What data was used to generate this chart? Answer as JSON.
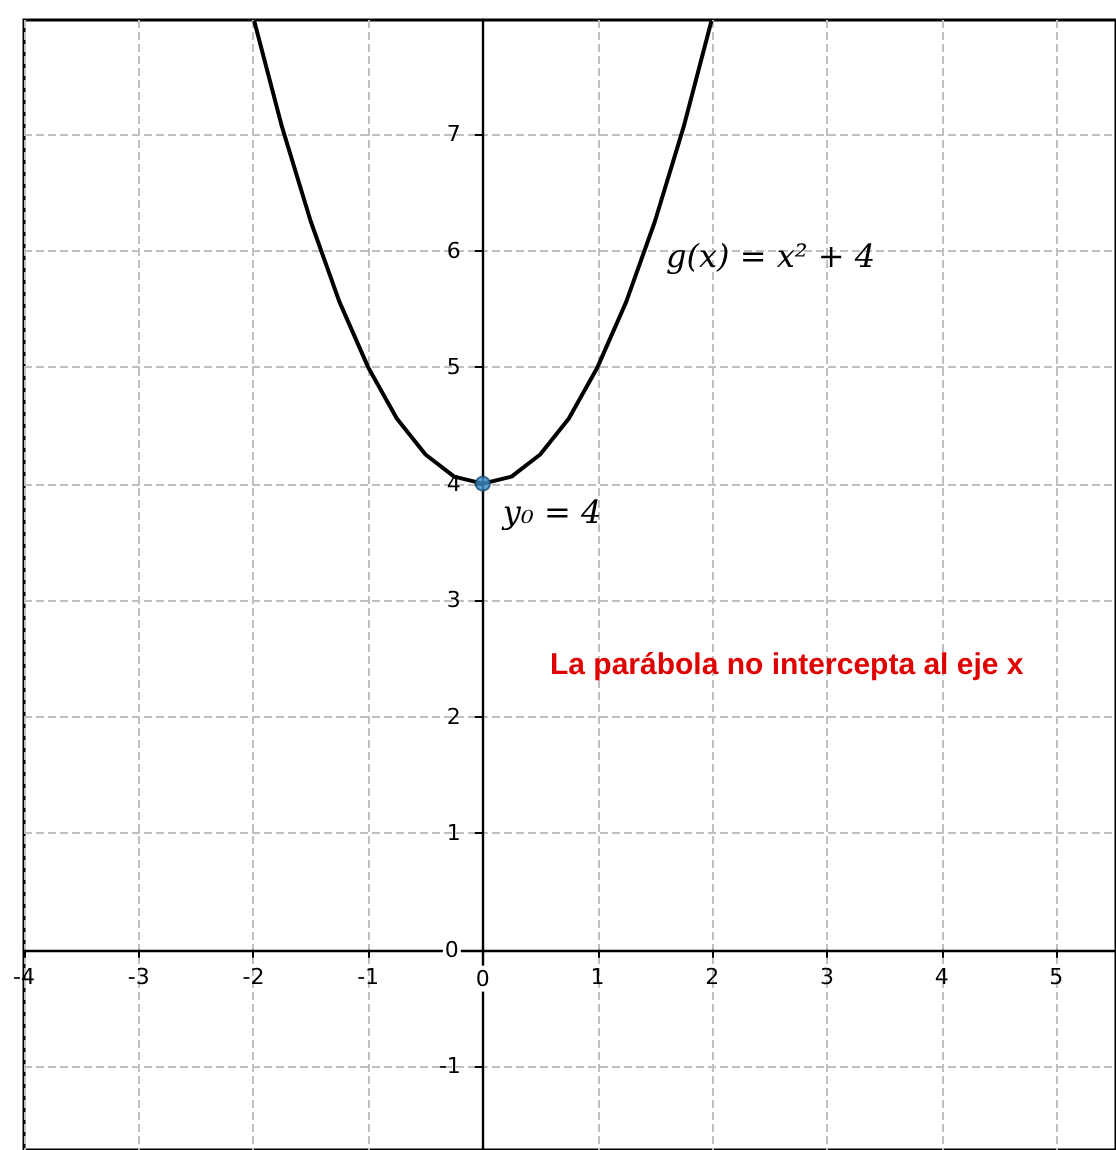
{
  "chart_data": {
    "type": "line",
    "annotations": [
      "g(x) = x² + 4",
      {
        "text": "y₀ = 4",
        "x": 0,
        "y": 4
      },
      "La parábola no intercepta al eje x"
    ],
    "series": [
      {
        "color": "#000000",
        "marker": "none",
        "x": [
          -1.99,
          -1.75,
          -1.5,
          -1.25,
          -1,
          -0.75,
          -0.5,
          -0.25,
          0,
          0.25,
          0.5,
          0.75,
          1,
          1.25,
          1.5,
          1.75,
          1.99
        ],
        "values": [
          7.96,
          7.06,
          6.25,
          5.56,
          5,
          4.56,
          4.25,
          4.06,
          4,
          4.06,
          4.25,
          4.56,
          5,
          5.56,
          6.25,
          7.06,
          7.96
        ]
      },
      {
        "type": "scatter",
        "color": "#3c8dc8",
        "marker": "circle",
        "x": [
          0
        ],
        "values": [
          4
        ]
      }
    ],
    "xlim": [
      -4,
      5.52
    ],
    "xticks": [
      -4,
      -3,
      -2,
      -1,
      0,
      1,
      2,
      3,
      4,
      5
    ],
    "ylim": [
      -1.72,
      7.98
    ],
    "yticks": [
      -1,
      0,
      1,
      2,
      3,
      4,
      5,
      6,
      7
    ],
    "grid": true,
    "line_style": "solid"
  }
}
